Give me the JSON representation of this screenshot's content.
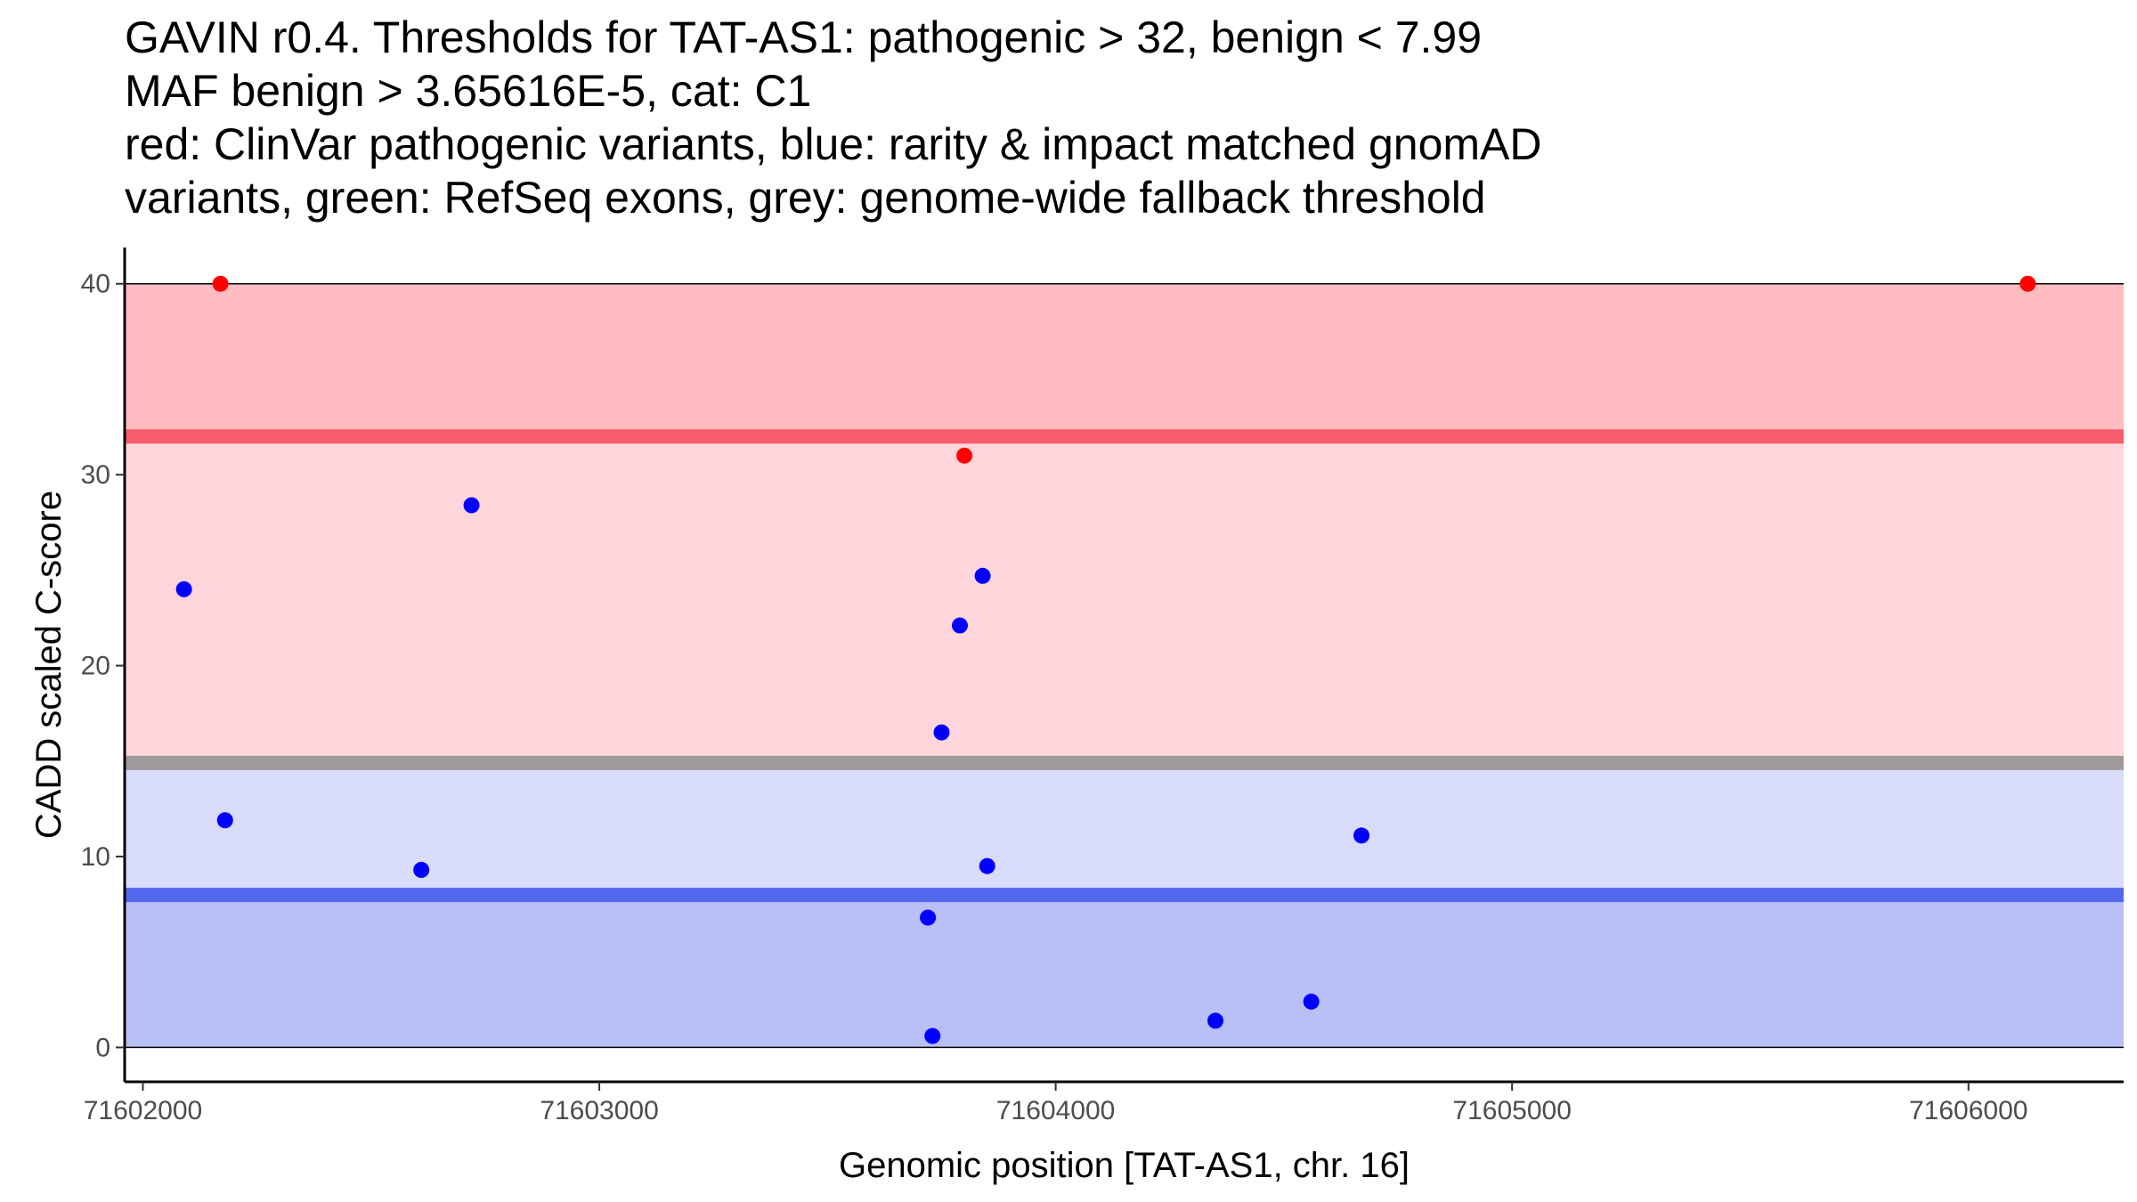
{
  "chart_data": {
    "type": "scatter",
    "title_lines": [
      "GAVIN r0.4. Thresholds for TAT-AS1: pathogenic > 32, benign < 7.99",
      "MAF benign > 3.65616E-5, cat: C1",
      "red: ClinVar pathogenic variants, blue: rarity & impact matched gnomAD",
      "variants, green: RefSeq exons, grey: genome-wide fallback threshold"
    ],
    "xlabel": "Genomic position [TAT-AS1, chr. 16]",
    "ylabel": "CADD scaled C-score",
    "xlim": [
      71601960,
      71606340
    ],
    "ylim": [
      -1.8,
      41.9
    ],
    "x_ticks": [
      71602000,
      71603000,
      71604000,
      71605000,
      71606000
    ],
    "x_tick_labels": [
      "71602000",
      "71603000",
      "71604000",
      "71605000",
      "71606000"
    ],
    "y_ticks": [
      0,
      10,
      20,
      30,
      40
    ],
    "y_tick_labels": [
      "0",
      "10",
      "20",
      "30",
      "40"
    ],
    "bands": [
      {
        "name": "pathogenic-above",
        "ymin": 32,
        "ymax": 40,
        "color": "#ffbdc2"
      },
      {
        "name": "pathogenic-zone",
        "ymin": 14.9,
        "ymax": 32,
        "color": "#ffd6dc"
      },
      {
        "name": "benign-zone",
        "ymin": 7.99,
        "ymax": 14.9,
        "color": "#d8dbfa"
      },
      {
        "name": "benign-below",
        "ymin": 0,
        "ymax": 7.99,
        "color": "#b9bff7"
      }
    ],
    "threshold_lines": [
      {
        "name": "pathogenic-threshold",
        "y": 32,
        "color": "#f65c6b"
      },
      {
        "name": "fallback-threshold",
        "y": 14.9,
        "color": "#9e9a9b"
      },
      {
        "name": "benign-threshold",
        "y": 7.99,
        "color": "#5268ec"
      }
    ],
    "series": [
      {
        "name": "ClinVar pathogenic variants",
        "color": "#ff0000",
        "points": [
          [
            71602170,
            40
          ],
          [
            71606130,
            40
          ],
          [
            71603800,
            31
          ]
        ]
      },
      {
        "name": "gnomAD matched variants",
        "color": "#0000ff",
        "points": [
          [
            71602090,
            24
          ],
          [
            71602720,
            28.4
          ],
          [
            71603840,
            24.7
          ],
          [
            71603790,
            22.1
          ],
          [
            71603750,
            16.5
          ],
          [
            71602180,
            11.9
          ],
          [
            71602610,
            9.3
          ],
          [
            71603850,
            9.5
          ],
          [
            71604670,
            11.1
          ],
          [
            71603720,
            6.8
          ],
          [
            71603730,
            0.6
          ],
          [
            71604350,
            1.4
          ],
          [
            71604560,
            2.4
          ]
        ]
      }
    ]
  }
}
